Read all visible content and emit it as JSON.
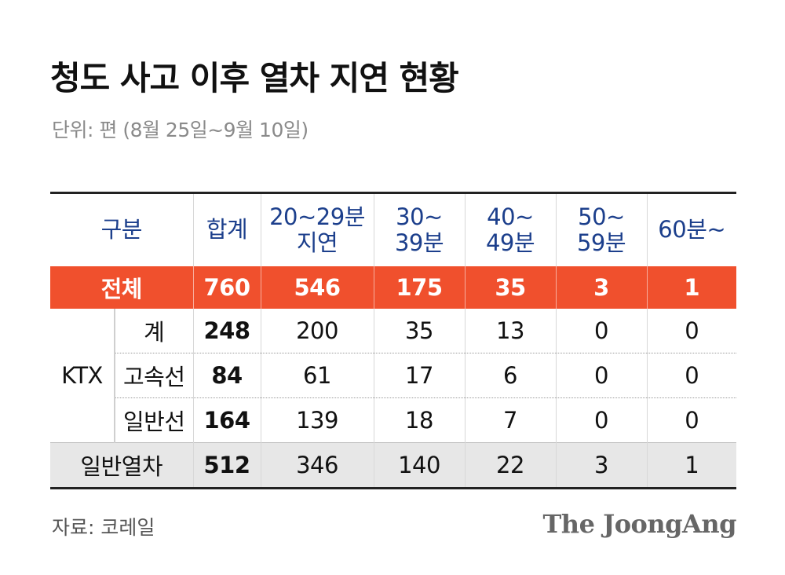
{
  "title": "청도 사고 이후 열차 지연 현황",
  "subtitle": "단위: 편  (8월 25일~9월 10일)",
  "source": "자료: 코레일",
  "logo": "The JoongAng",
  "colors": {
    "header_text": "#1c3f8c",
    "total_row": "#f0502d",
    "general_row": "#e7e7e7"
  },
  "chart_data": {
    "type": "table",
    "columns": [
      "구분",
      "합계",
      "20~29분\n지연",
      "30~\n39분",
      "40~\n49분",
      "50~\n59분",
      "60분~"
    ],
    "rows": {
      "total": {
        "label": "전체",
        "values": [
          "760",
          "546",
          "175",
          "35",
          "3",
          "1"
        ]
      },
      "ktx_group": "KTX",
      "ktx": [
        {
          "label": "계",
          "values": [
            "248",
            "200",
            "35",
            "13",
            "0",
            "0"
          ]
        },
        {
          "label": "고속선",
          "values": [
            "84",
            "61",
            "17",
            "6",
            "0",
            "0"
          ]
        },
        {
          "label": "일반선",
          "values": [
            "164",
            "139",
            "18",
            "7",
            "0",
            "0"
          ]
        }
      ],
      "general": {
        "label": "일반열차",
        "values": [
          "512",
          "346",
          "140",
          "22",
          "3",
          "1"
        ]
      }
    }
  }
}
